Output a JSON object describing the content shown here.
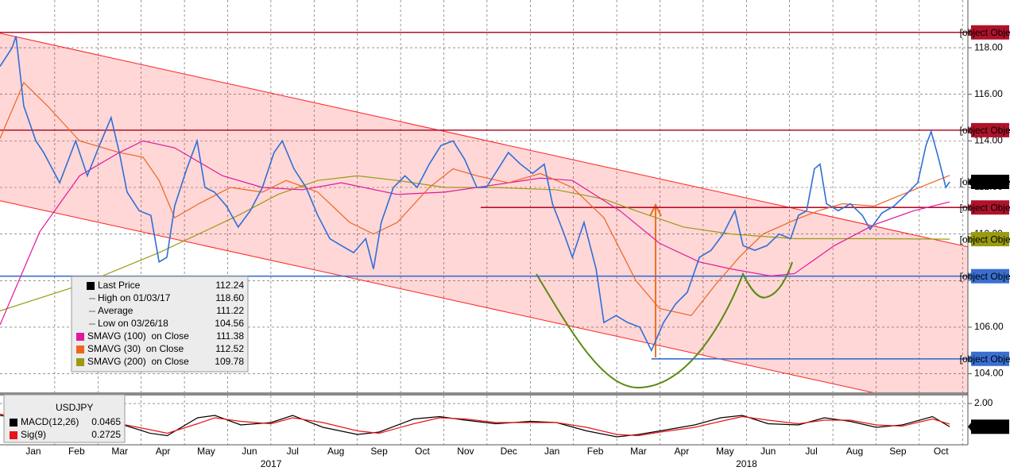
{
  "chart_data": [
    {
      "type": "line",
      "xlim": [
        -0.27,
        22.12
      ],
      "xticks": [
        {
          "value": 0.5,
          "label": "Jan"
        },
        {
          "value": 1.5,
          "label": "Feb"
        },
        {
          "value": 2.5,
          "label": "Mar"
        },
        {
          "value": 3.5,
          "label": "Apr"
        },
        {
          "value": 4.5,
          "label": "May"
        },
        {
          "value": 5.5,
          "label": "Jun"
        },
        {
          "value": 6.5,
          "label": "Jul"
        },
        {
          "value": 7.5,
          "label": "Aug"
        },
        {
          "value": 8.5,
          "label": "Sep"
        },
        {
          "value": 9.5,
          "label": "Oct"
        },
        {
          "value": 10.5,
          "label": "Nov"
        },
        {
          "value": 11.5,
          "label": "Dec"
        },
        {
          "value": 12.5,
          "label": "Jan"
        },
        {
          "value": 13.5,
          "label": "Feb"
        },
        {
          "value": 14.5,
          "label": "Mar"
        },
        {
          "value": 15.5,
          "label": "Apr"
        },
        {
          "value": 16.5,
          "label": "May"
        },
        {
          "value": 17.5,
          "label": "Jun"
        },
        {
          "value": 18.5,
          "label": "Jul"
        },
        {
          "value": 19.5,
          "label": "Aug"
        },
        {
          "value": 20.5,
          "label": "Sep"
        },
        {
          "value": 21.5,
          "label": "Oct"
        }
      ],
      "year_ticks": [
        {
          "value": 6,
          "label": "2017"
        },
        {
          "value": 17,
          "label": "2018"
        }
      ],
      "ylim": [
        103.2,
        120.05
      ],
      "yticks": [
        {
          "value": 104,
          "label": "104.00"
        },
        {
          "value": 106,
          "label": "106.00"
        },
        {
          "value": 108,
          "label": "108.00"
        },
        {
          "value": 110,
          "label": "110.00"
        },
        {
          "value": 112,
          "label": "112.00"
        },
        {
          "value": 114,
          "label": "114.00"
        },
        {
          "value": 116,
          "label": "116.00"
        },
        {
          "value": 118,
          "label": "118.00"
        }
      ],
      "grid": true,
      "series": [
        {
          "name": "Last Price",
          "color": "#2f6fd6",
          "x": [
            -0.27,
            0.01,
            0.1,
            0.28,
            0.56,
            0.74,
            1.11,
            1.48,
            1.75,
            2.03,
            2.3,
            2.49,
            2.67,
            2.95,
            3.22,
            3.41,
            3.59,
            3.77,
            4.05,
            4.29,
            4.47,
            4.69,
            4.97,
            5.24,
            5.52,
            5.8,
            6.07,
            6.26,
            6.53,
            6.81,
            7.08,
            7.36,
            7.63,
            7.91,
            8.19,
            8.37,
            8.55,
            8.83,
            9.1,
            9.38,
            9.66,
            9.93,
            10.21,
            10.48,
            10.76,
            10.98,
            11.22,
            11.49,
            11.77,
            12.05,
            12.32,
            12.51,
            12.78,
            12.97,
            13.24,
            13.52,
            13.7,
            13.98,
            14.25,
            14.53,
            14.8,
            15.08,
            15.36,
            15.63,
            15.91,
            16.18,
            16.46,
            16.73,
            16.92,
            17.19,
            17.47,
            17.75,
            18.02,
            18.2,
            18.39,
            18.57,
            18.7,
            18.85,
            19.12,
            19.4,
            19.68,
            19.86,
            20.13,
            20.41,
            20.69,
            20.96,
            21.15,
            21.27,
            21.42,
            21.61,
            21.7
          ],
          "values": [
            117.2,
            118.0,
            118.5,
            115.5,
            114.0,
            113.5,
            112.2,
            114.0,
            112.5,
            113.8,
            115.0,
            113.5,
            111.8,
            111.0,
            110.8,
            108.8,
            109.0,
            111.2,
            112.8,
            114.0,
            112.0,
            111.8,
            111.2,
            110.3,
            111.0,
            112.0,
            113.5,
            114.0,
            112.8,
            112.0,
            110.8,
            109.8,
            109.5,
            109.2,
            109.8,
            108.5,
            110.5,
            112.0,
            112.5,
            112.0,
            113.0,
            113.8,
            114.0,
            113.2,
            112.0,
            112.0,
            112.7,
            113.5,
            113.0,
            112.6,
            113.0,
            111.3,
            110.0,
            109.0,
            110.5,
            108.5,
            106.2,
            106.5,
            106.2,
            106.0,
            105.0,
            106.2,
            107.0,
            107.5,
            109.0,
            109.3,
            110.0,
            111.0,
            109.5,
            109.3,
            109.5,
            110.0,
            109.8,
            110.8,
            111.0,
            112.8,
            113.0,
            111.3,
            111.0,
            111.3,
            110.8,
            110.2,
            110.9,
            111.2,
            111.7,
            112.2,
            113.8,
            114.4,
            113.4,
            112.0,
            112.24
          ]
        },
        {
          "name": "SMAVG (100)  on Close",
          "color": "#e0189c",
          "last": 111.38,
          "x": [
            -0.27,
            0.65,
            1.57,
            2.49,
            3.04,
            3.77,
            4.88,
            5.8,
            6.72,
            7.63,
            8.92,
            10.02,
            11.13,
            12.23,
            12.97,
            14.07,
            14.99,
            15.91,
            16.64,
            17.56,
            18.11,
            19.03,
            19.95,
            20.87,
            21.7
          ],
          "values": [
            106.1,
            110.1,
            112.5,
            113.5,
            114.0,
            113.7,
            112.5,
            112.0,
            111.9,
            112.2,
            111.7,
            111.8,
            112.1,
            112.4,
            112.3,
            111.0,
            109.6,
            108.8,
            108.5,
            108.2,
            108.3,
            109.5,
            110.4,
            111.0,
            111.38
          ]
        },
        {
          "name": "SMAVG (30)  on Close",
          "color": "#f0641e",
          "last": 112.52,
          "x": [
            -0.27,
            0.28,
            0.83,
            1.57,
            2.49,
            3.04,
            3.41,
            3.77,
            4.33,
            5.06,
            5.8,
            6.35,
            7.08,
            7.82,
            8.37,
            8.92,
            9.66,
            10.21,
            10.76,
            11.49,
            12.23,
            12.97,
            13.7,
            14.44,
            14.99,
            15.72,
            16.27,
            16.83,
            17.38,
            18.11,
            18.66,
            19.22,
            19.95,
            20.87,
            21.7
          ],
          "values": [
            114.1,
            116.5,
            115.5,
            114.0,
            113.5,
            113.3,
            112.3,
            110.7,
            111.3,
            112.0,
            111.8,
            112.3,
            111.8,
            110.5,
            110.0,
            110.5,
            112.0,
            112.8,
            112.5,
            112.2,
            112.6,
            112.0,
            110.7,
            108.0,
            106.8,
            106.5,
            107.8,
            109.0,
            110.0,
            110.6,
            111.0,
            111.3,
            111.2,
            111.9,
            112.52
          ]
        },
        {
          "name": "SMAVG (200)  on Close",
          "color": "#9a9a10",
          "last": 109.78,
          "x": [
            -0.27,
            1.57,
            3.41,
            5.24,
            6.16,
            7.08,
            8.0,
            8.92,
            10.02,
            11.13,
            12.6,
            13.7,
            14.44,
            15.54,
            16.64,
            18.11,
            19.95,
            21.7
          ],
          "values": [
            106.7,
            107.8,
            109.2,
            110.8,
            111.7,
            112.3,
            112.5,
            112.3,
            112.0,
            112.0,
            111.9,
            111.5,
            111.0,
            110.3,
            110.0,
            109.8,
            109.8,
            109.78
          ]
        }
      ],
      "stats": [
        {
          "label": "Last Price",
          "value": 112.24
        },
        {
          "label": "High on 01/03/17",
          "value": 118.6,
          "value_label": "118.60"
        },
        {
          "label": "Average",
          "value": 111.22
        },
        {
          "label": "Low on 03/26/18",
          "value": 104.56
        }
      ],
      "channel": {
        "color": "#ff2020",
        "upper_x": [
          -0.27,
          22.12
        ],
        "upper": [
          118.62,
          109.45
        ],
        "lower_x": [
          -0.27,
          19.95
        ],
        "lower": [
          111.43,
          103.18
        ]
      },
      "levels": [
        {
          "value": 118.66,
          "color": "#b0122a",
          "from": -0.27
        },
        {
          "value": 114.46,
          "color": "#b0122a",
          "from": -0.27
        },
        {
          "value": 112.24,
          "color": "#000000",
          "from": null
        },
        {
          "value": 111.14,
          "color": "#b0122a",
          "from": 10.85
        },
        {
          "value": 109.78,
          "color": "#9a9a10",
          "from": null
        },
        {
          "value": 108.19,
          "color": "#3a6fd0",
          "from": -0.27
        },
        {
          "value": 104.64,
          "color": "#3a6fd0",
          "from": 14.8
        }
      ]
    },
    {
      "type": "line",
      "title": "USDJPY",
      "ylim": [
        -1.47,
        2.67
      ],
      "yticks": [
        {
          "value": 2,
          "label": "2.00"
        }
      ],
      "series": [
        {
          "name": "MACD(12,26)",
          "color": "#000000",
          "last": 0.0465,
          "x": [
            -0.27,
            0.5,
            1.5,
            2.5,
            3.2,
            3.6,
            4.3,
            4.7,
            5.3,
            6.0,
            6.5,
            7.2,
            8.0,
            8.5,
            9.3,
            9.9,
            10.5,
            11.2,
            12.0,
            12.6,
            13.3,
            14.0,
            14.5,
            15.0,
            15.8,
            16.4,
            16.9,
            17.5,
            18.2,
            18.8,
            19.4,
            20.0,
            20.6,
            21.3,
            21.7
          ],
          "values": [
            1.0,
            0.6,
            0.2,
            0.3,
            -0.5,
            -0.7,
            0.8,
            1.0,
            0.2,
            0.4,
            1.0,
            0.0,
            -0.6,
            -0.4,
            0.7,
            0.9,
            0.6,
            0.3,
            0.5,
            0.4,
            -0.3,
            -0.8,
            -0.6,
            -0.3,
            0.2,
            0.8,
            1.0,
            0.3,
            0.2,
            0.8,
            0.5,
            0.0,
            0.2,
            0.9,
            0.0465
          ]
        },
        {
          "name": "Sig(9)",
          "color": "#e8141c",
          "last": 0.2725,
          "x": [
            -0.27,
            0.5,
            1.5,
            2.5,
            3.2,
            3.6,
            4.3,
            4.7,
            5.3,
            6.0,
            6.5,
            7.2,
            8.0,
            8.5,
            9.3,
            9.9,
            10.5,
            11.2,
            12.0,
            12.6,
            13.3,
            14.0,
            14.5,
            15.0,
            15.8,
            16.4,
            16.9,
            17.5,
            18.2,
            18.8,
            19.4,
            20.0,
            20.6,
            21.3,
            21.7
          ],
          "values": [
            1.1,
            0.8,
            0.4,
            0.3,
            -0.2,
            -0.5,
            0.3,
            0.8,
            0.5,
            0.3,
            0.8,
            0.4,
            -0.3,
            -0.5,
            0.3,
            0.8,
            0.7,
            0.4,
            0.4,
            0.4,
            0.0,
            -0.6,
            -0.7,
            -0.4,
            0.0,
            0.5,
            0.9,
            0.6,
            0.3,
            0.6,
            0.6,
            0.2,
            0.1,
            0.7,
            0.2725
          ]
        }
      ]
    }
  ]
}
